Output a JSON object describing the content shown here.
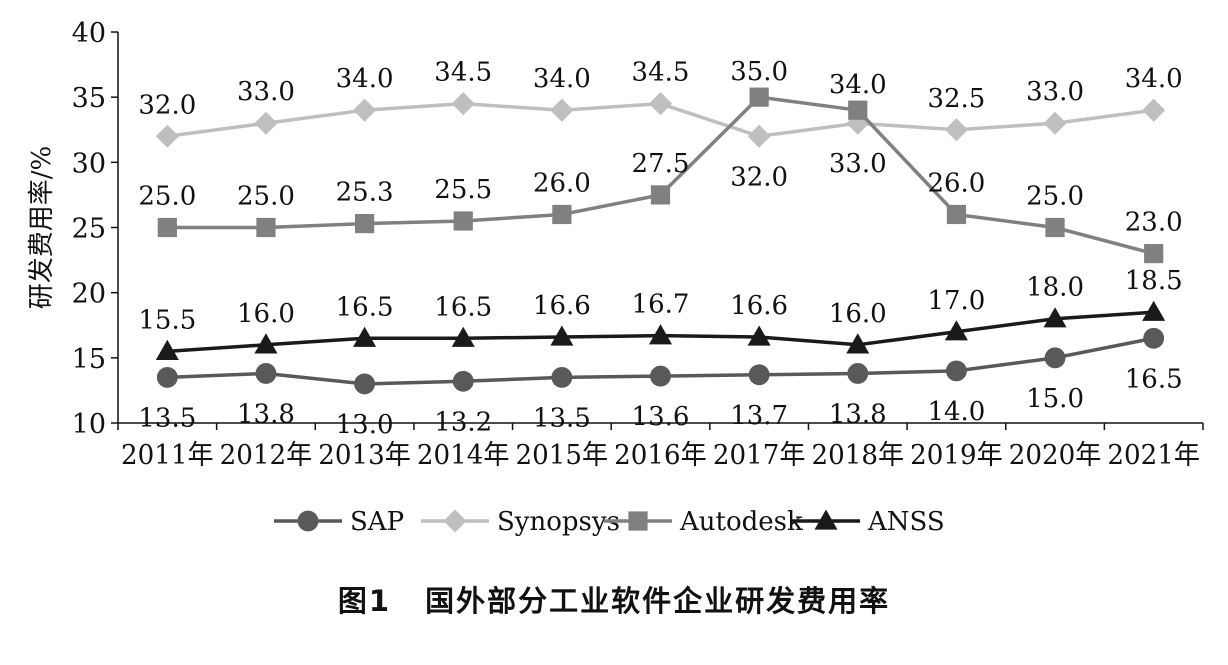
{
  "caption": {
    "number": "图1",
    "text": "国外部分工业软件企业研发费用率"
  },
  "chart_data": {
    "type": "line",
    "ylabel": "研发费用率/%",
    "xlabel": "",
    "ylim": [
      10,
      40
    ],
    "yticks": [
      10,
      15,
      20,
      25,
      30,
      35,
      40
    ],
    "categories": [
      "2011年",
      "2012年",
      "2013年",
      "2014年",
      "2015年",
      "2016年",
      "2017年",
      "2018年",
      "2019年",
      "2020年",
      "2021年"
    ],
    "legend_position": "bottom",
    "grid": false,
    "series": [
      {
        "name": "SAP",
        "marker": "circle",
        "color": "#595959",
        "values": [
          13.5,
          13.8,
          13.0,
          13.2,
          13.5,
          13.6,
          13.7,
          13.8,
          14.0,
          15.0,
          16.5
        ],
        "labels": [
          "13.5",
          "13.8",
          "13.0",
          "13.2",
          "13.5",
          "13.6",
          "13.7",
          "13.8",
          "14.0",
          "15.0",
          "16.5"
        ]
      },
      {
        "name": "Synopsys",
        "marker": "diamond",
        "color": "#bfbfbf",
        "values": [
          32.0,
          33.0,
          34.0,
          34.5,
          34.0,
          34.5,
          32.0,
          33.0,
          32.5,
          33.0,
          34.0
        ],
        "labels": [
          "32.0",
          "33.0",
          "34.0",
          "34.5",
          "34.0",
          "34.5",
          "32.0",
          "33.0",
          "32.5",
          "33.0",
          "34.0"
        ]
      },
      {
        "name": "Autodesk",
        "marker": "square",
        "color": "#808080",
        "values": [
          25.0,
          25.0,
          25.3,
          25.5,
          26.0,
          27.5,
          35.0,
          34.0,
          26.0,
          25.0,
          23.0
        ],
        "labels": [
          "25.0",
          "25.0",
          "25.3",
          "25.5",
          "26.0",
          "27.5",
          "35.0",
          "34.0",
          "26.0",
          "25.0",
          "23.0"
        ]
      },
      {
        "name": "ANSS",
        "marker": "triangle",
        "color": "#1a1a1a",
        "values": [
          15.5,
          16.0,
          16.5,
          16.5,
          16.6,
          16.7,
          16.6,
          16.0,
          17.0,
          18.0,
          18.5
        ],
        "labels": [
          "15.5",
          "16.0",
          "16.5",
          "16.5",
          "16.6",
          "16.7",
          "16.6",
          "16.0",
          "17.0",
          "18.0",
          "18.5"
        ]
      }
    ]
  }
}
